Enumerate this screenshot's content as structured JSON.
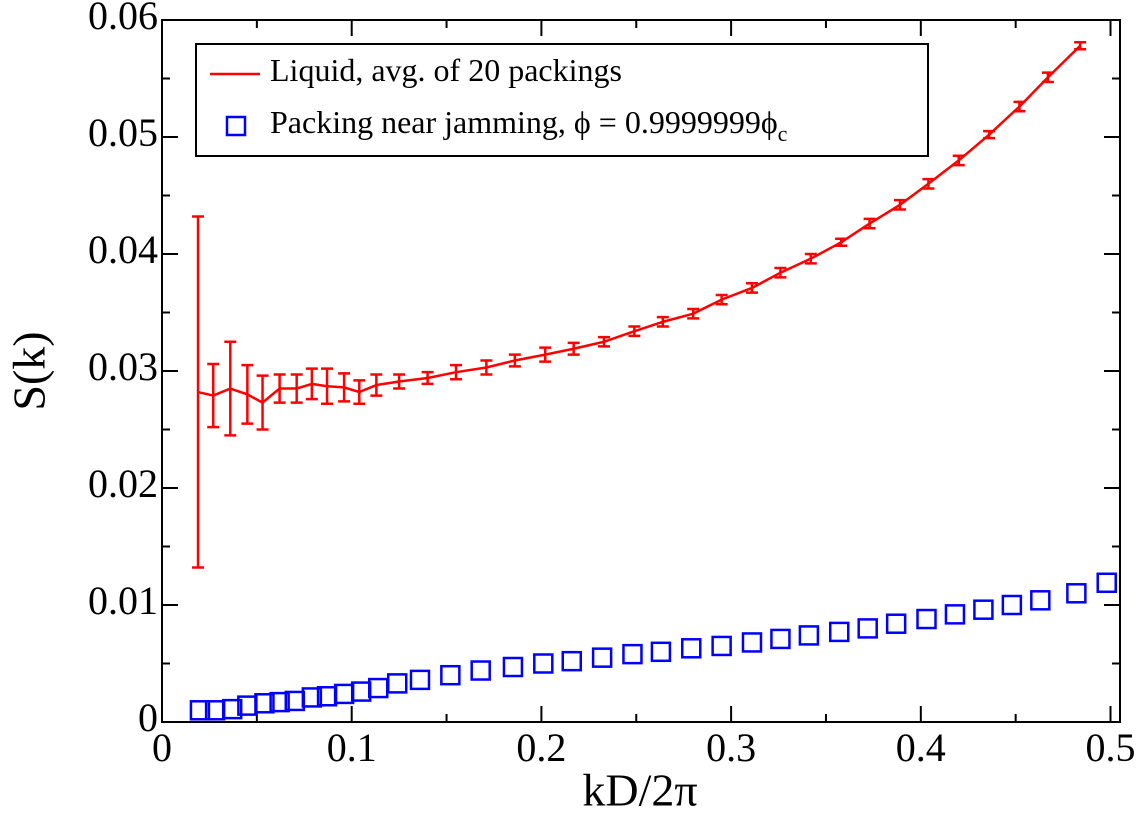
{
  "chart_data": {
    "type": "line",
    "xlabel": "kD/2π",
    "ylabel": "S(k)",
    "xlim": [
      0,
      0.505
    ],
    "ylim": [
      0,
      0.06
    ],
    "xticks": [
      0,
      0.1,
      0.2,
      0.3,
      0.4,
      0.5
    ],
    "xticks_minor": [
      0.05,
      0.15,
      0.25,
      0.35,
      0.45
    ],
    "yticks": [
      0,
      0.01,
      0.02,
      0.03,
      0.04,
      0.05,
      0.06
    ],
    "yticks_minor": [
      0.005,
      0.015,
      0.025,
      0.035,
      0.045,
      0.055
    ],
    "legend": "upper left",
    "series": [
      {
        "name": "Liquid, avg. of 20 packings",
        "type": "line",
        "color": "#ff0000",
        "x": [
          0.019,
          0.027,
          0.036,
          0.045,
          0.053,
          0.062,
          0.071,
          0.079,
          0.087,
          0.096,
          0.104,
          0.113,
          0.125,
          0.14,
          0.155,
          0.171,
          0.186,
          0.202,
          0.217,
          0.233,
          0.249,
          0.264,
          0.28,
          0.295,
          0.311,
          0.326,
          0.342,
          0.358,
          0.373,
          0.389,
          0.404,
          0.42,
          0.436,
          0.452,
          0.467,
          0.484
        ],
        "values": [
          0.0282,
          0.0279,
          0.0285,
          0.028,
          0.0273,
          0.0285,
          0.0285,
          0.0289,
          0.0287,
          0.0286,
          0.0282,
          0.0288,
          0.0291,
          0.0294,
          0.0299,
          0.0303,
          0.0309,
          0.0314,
          0.0319,
          0.0325,
          0.0334,
          0.0342,
          0.0349,
          0.0361,
          0.0371,
          0.0384,
          0.0396,
          0.041,
          0.0426,
          0.0442,
          0.046,
          0.048,
          0.0502,
          0.0526,
          0.0551,
          0.0578
        ],
        "errors": [
          0.015,
          0.0027,
          0.004,
          0.0025,
          0.0023,
          0.0012,
          0.0012,
          0.0013,
          0.0015,
          0.0012,
          0.001,
          0.0009,
          0.0006,
          0.0005,
          0.0006,
          0.0006,
          0.0005,
          0.0006,
          0.0005,
          0.0004,
          0.0004,
          0.0004,
          0.0004,
          0.0004,
          0.0004,
          0.0004,
          0.0004,
          0.0003,
          0.0004,
          0.0004,
          0.0004,
          0.0004,
          0.0003,
          0.0004,
          0.0004,
          0.0003
        ]
      },
      {
        "name": "Packing near jamming, ϕ = 0.9999999ϕ",
        "name_subscript": "c",
        "type": "scatter",
        "color": "#0000ff",
        "x": [
          0.02,
          0.028,
          0.037,
          0.045,
          0.054,
          0.062,
          0.07,
          0.079,
          0.087,
          0.096,
          0.105,
          0.114,
          0.124,
          0.136,
          0.152,
          0.168,
          0.185,
          0.201,
          0.216,
          0.232,
          0.248,
          0.263,
          0.279,
          0.295,
          0.311,
          0.326,
          0.341,
          0.357,
          0.372,
          0.387,
          0.403,
          0.418,
          0.433,
          0.448,
          0.463,
          0.482,
          0.498
        ],
        "values": [
          0.001,
          0.001,
          0.0011,
          0.0014,
          0.0016,
          0.0017,
          0.0018,
          0.0021,
          0.0022,
          0.0024,
          0.0026,
          0.0029,
          0.0033,
          0.0036,
          0.004,
          0.0044,
          0.0047,
          0.005,
          0.0052,
          0.0055,
          0.0058,
          0.006,
          0.0063,
          0.0065,
          0.0068,
          0.0071,
          0.0074,
          0.0077,
          0.008,
          0.0084,
          0.0088,
          0.0092,
          0.0096,
          0.01,
          0.0104,
          0.011,
          0.0119
        ]
      }
    ]
  }
}
